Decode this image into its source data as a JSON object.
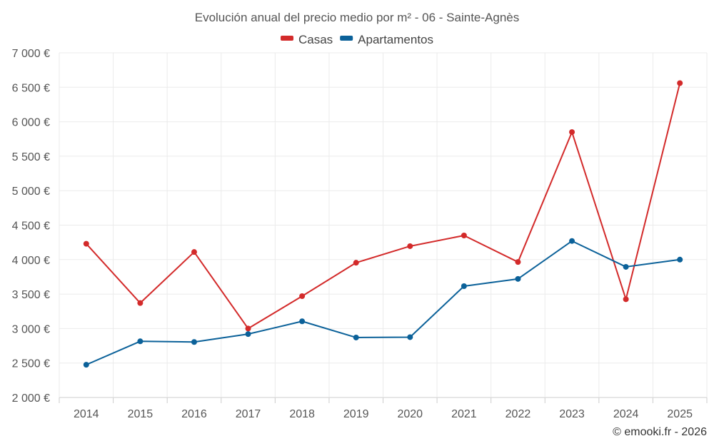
{
  "chart_data": {
    "type": "line",
    "title": "Evolución anual del precio medio por m² - 06 - Sainte-Agnès",
    "categories": [
      "2014",
      "2015",
      "2016",
      "2017",
      "2018",
      "2019",
      "2020",
      "2021",
      "2022",
      "2023",
      "2024",
      "2025"
    ],
    "series": [
      {
        "name": "Casas",
        "color": "#d32a2a",
        "values": [
          4230,
          3370,
          4110,
          3000,
          3470,
          3955,
          4195,
          4350,
          3965,
          5850,
          3425,
          6560
        ]
      },
      {
        "name": "Apartamentos",
        "color": "#0b6199",
        "values": [
          2475,
          2815,
          2805,
          2920,
          3105,
          2870,
          2875,
          3615,
          3720,
          4270,
          3895,
          4000
        ]
      }
    ],
    "ylim": [
      2000,
      7000
    ],
    "yticks": [
      2000,
      2500,
      3000,
      3500,
      4000,
      4500,
      5000,
      5500,
      6000,
      6500,
      7000
    ],
    "ytick_labels": [
      "2 000 €",
      "2 500 €",
      "3 000 €",
      "3 500 €",
      "4 000 €",
      "4 500 €",
      "5 000 €",
      "5 500 €",
      "6 000 €",
      "6 500 €",
      "7 000 €"
    ],
    "xlabel": "",
    "ylabel": "",
    "grid": true,
    "legend_position": "top-center",
    "credit": "© emooki.fr - 2026"
  }
}
